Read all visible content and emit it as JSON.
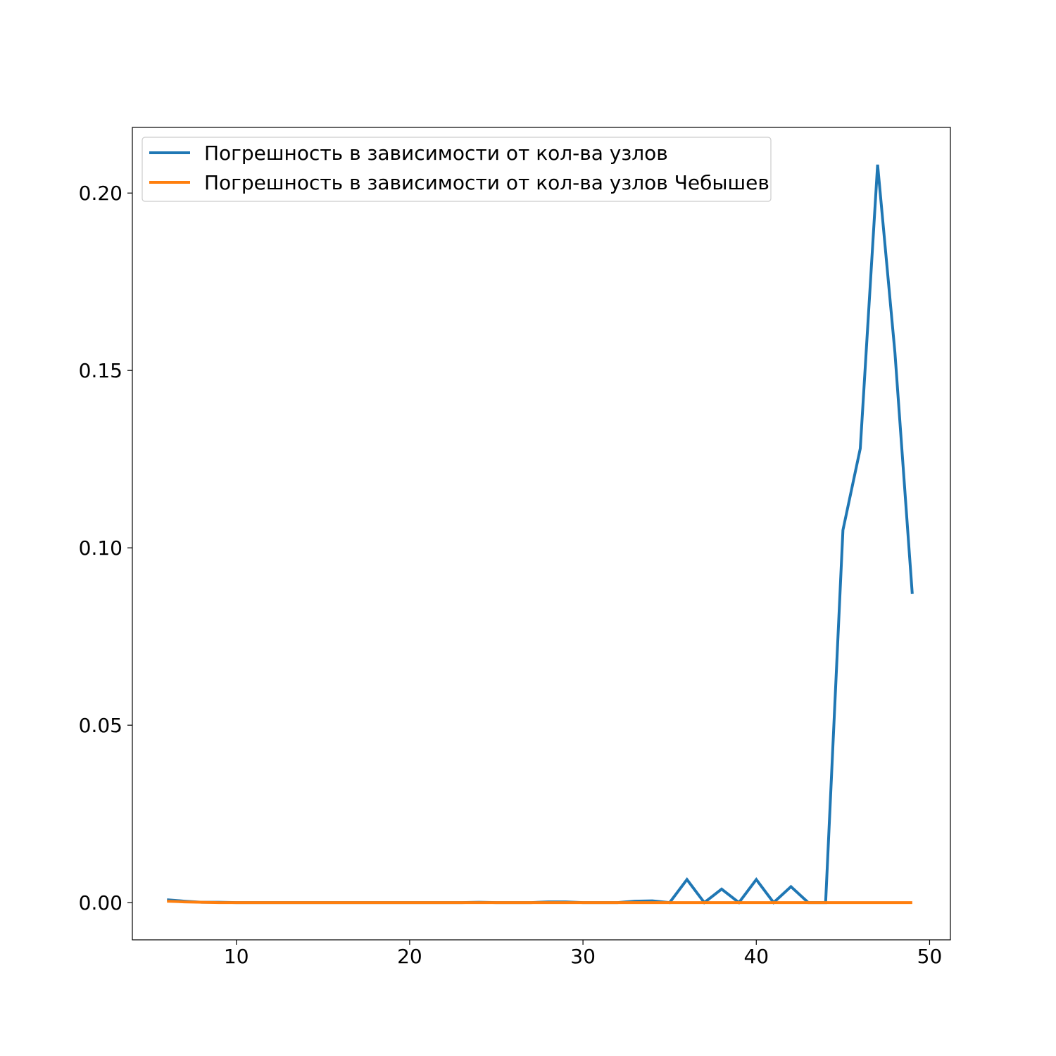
{
  "chart_data": {
    "type": "line",
    "title": "",
    "xlabel": "",
    "ylabel": "",
    "xlim": [
      4.0,
      51.2
    ],
    "ylim": [
      -0.0105,
      0.2185
    ],
    "grid": false,
    "legend_placement": "upper-left",
    "x_ticks": [
      10,
      20,
      30,
      40,
      50
    ],
    "x_tick_labels": [
      "10",
      "20",
      "30",
      "40",
      "50"
    ],
    "y_ticks": [
      0.0,
      0.05,
      0.1,
      0.15,
      0.2
    ],
    "y_tick_labels": [
      "0.00",
      "0.05",
      "0.10",
      "0.15",
      "0.20"
    ],
    "x": [
      6,
      7,
      8,
      9,
      10,
      11,
      12,
      13,
      14,
      15,
      16,
      17,
      18,
      19,
      20,
      21,
      22,
      23,
      24,
      25,
      26,
      27,
      28,
      29,
      30,
      31,
      32,
      33,
      34,
      35,
      36,
      37,
      38,
      39,
      40,
      41,
      42,
      43,
      44,
      45,
      46,
      47,
      48,
      49
    ],
    "series": [
      {
        "name": "Погрешность в зависимости от кол-ва узлов",
        "color": "#1f77b4",
        "values": [
          0.0008,
          0.0004,
          0.0001,
          0.0001,
          0.0,
          0.0,
          0.0,
          0.0,
          0.0,
          0.0,
          0.0,
          0.0,
          0.0,
          0.0,
          0.0,
          0.0,
          0.0,
          0.0,
          0.0001,
          0.0,
          0.0,
          0.0,
          0.0002,
          0.0002,
          0.0,
          0.0,
          0.0,
          0.0004,
          0.0005,
          0.0,
          0.0065,
          0.0,
          0.0038,
          0.0,
          0.0065,
          0.0,
          0.0045,
          0.0,
          0.0,
          0.105,
          0.128,
          0.208,
          0.155,
          0.087
        ]
      },
      {
        "name": "Погрешность в зависимости от кол-ва узлов Чебышев",
        "color": "#ff7f0e",
        "values": [
          0.0004,
          0.0002,
          0.0001,
          0.0,
          0.0,
          0.0,
          0.0,
          0.0,
          0.0,
          0.0,
          0.0,
          0.0,
          0.0,
          0.0,
          0.0,
          0.0,
          0.0,
          0.0,
          0.0,
          0.0,
          0.0,
          0.0,
          0.0,
          0.0,
          0.0,
          0.0,
          0.0,
          0.0,
          0.0,
          0.0,
          0.0,
          0.0,
          0.0,
          0.0,
          0.0,
          0.0,
          0.0,
          0.0,
          0.0,
          0.0,
          0.0,
          0.0,
          0.0,
          0.0
        ]
      }
    ]
  }
}
